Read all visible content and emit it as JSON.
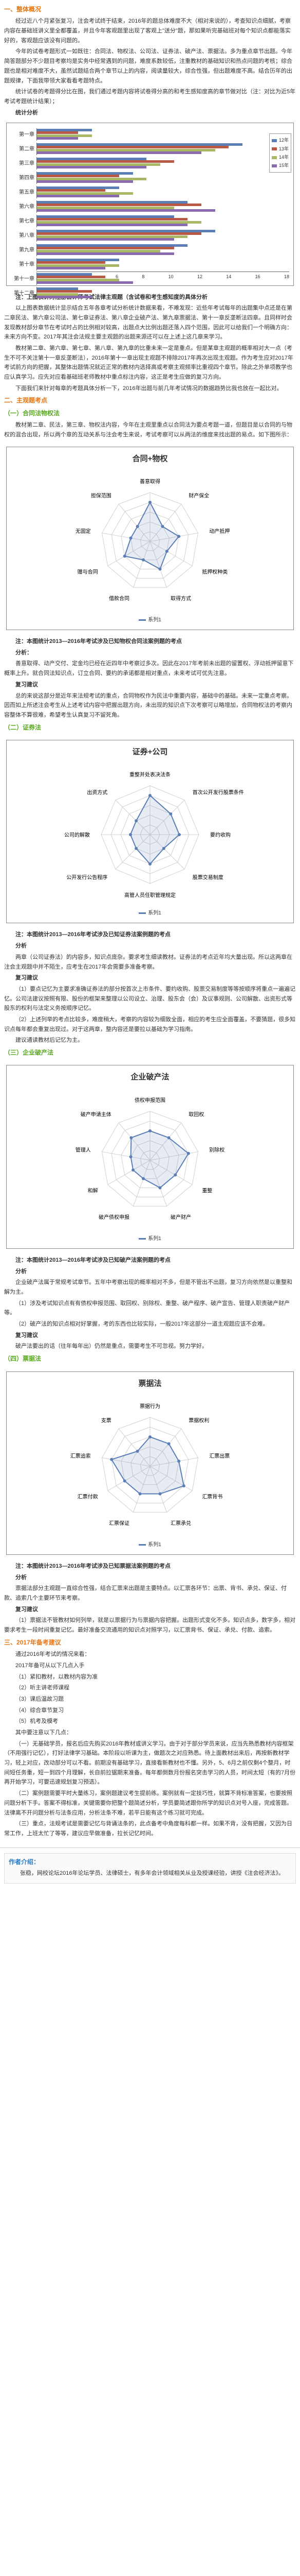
{
  "sections": {
    "s1_title": "一、整体概况",
    "s1_p1": "经过近八个月紧张复习，注会考试终于结束，2016年的题总体难度不大（相对来说的），考查知识点细腻，考察内容在基础班讲义里全都覆盖，并且今年客观题里出现了客观上\"送分\"题，那如果听完基础班对每个知识点都能落实好的，客观题应该没有问题的。",
    "s1_p2": "今年的试卷考题形式一如既往：合同法、物权法、公司法、证券法、破产法、票据法。多为重点章节出题。今年简答题部分不少题目考察均是实务中经常遇到的问题，难度系数较低，注重教材的基础知识和热点问题的考核；综合题也是相对难度不大，虽然试题结合两个章节以上的内容，阅读量较大，综合性强，但出题难度不高。结合历年的出题规律，下面我带领大家看看考题特点。",
    "s1_p3": "统计试卷的考题得分比在图，我们通过考题内容将试卷得分高的和考生感知度高的章节做对比（注：对比为近5年考试考题统计结果）；",
    "stat_title": "统计分析",
    "s1_note1": "注：上图仅针对注册会计师考试法律主观题（含试卷和考生感知度的具体分析",
    "s1_p4": "以上图表数据统计显示结合五年各章考试分析统计数据来看，不难发现：近些年考试每年的出题集中点还是在第二章民法、第六章公司法、第七章证券法、第八章企业破产法、第九章票据法、第十一章反垄断法四章。且同样时会发现教材部分章节在考试时占的比例相对较高，出题点大比例出题还落入四个范围，因此可以给我们一个明确方向：未来方向不变。2017年其注会法规主要主观题的出题来源还可以在上述上这几章来学习。",
    "s1_p5": "教材第二章、第六章、第七章、第八章、第九章的比重未来一定是重点。但是某章主观题的概率相对大一点（考生不可不关注第十一章反垄断法），2016年第十一章出现主观题不排除2017年再次出现主观题。作为考生应对2017年考试前方向的把握，其整体出题情况就近正常的教材内选择高或考察主观频率比重视四个章节。除此之外单项教学也应认真学习。应先对应看基础班老师教材中重点标注内容，这正是考生应做的复习方向。",
    "s1_p6": "下面我们来针对每章的考题具体分析一下，2016年出题与前几年考试情况的数据趋势比我也放在一起比对。",
    "s2_title": "二、主观题考点",
    "s2_sub1": "（一）合同法物权法",
    "s2_p1": "教材第二章、民法，第三章、物权法内容，今年在主观里重点以合同法为要点考题一道，但题目是以合同的与物权的混合出现，所以两个章的互动关系与注会考生来说，考试考察可以从两法的维度来找出题的易点。如下图所示：",
    "radar1_title": "合同+物权",
    "radar1_labels": [
      "善意取得",
      "财产保全",
      "动产抵押",
      "抵押权种类",
      "取得方式",
      "借款合同",
      "赠与合同",
      "无固定",
      "担保范围"
    ],
    "radar1_legend": "系列1",
    "s2_note2": "注：本图统计2013—2016年考试涉及已知物权合同法案例题的考点",
    "s2_a1_title": "分析：",
    "s2_a1_p": "善意取得、动产交付、定金均已经在近四年中考察过多次。因此在2017年考前未出题的留置权、浮动抵押留意下概率上升。就合同法知识点，订立合同、要约的承诺都是相对重点，未来考试可优先注意。",
    "s2_r1_title": "复习建议",
    "s2_r1_p": "总的来说这部分是近年来法规考试的重点，合同物权作为民法中重要内容，基础中的基础。未来一定重点考察。因而如上所述注会考生从上述考试内容中把握出题方向，未出现的知识点下次考察可以略增加，合同物权法的考察内容整体不算很难，希望考生认真复习不留死角。",
    "s2_sub2": "（二）证券法",
    "radar2_title": "证券+公司",
    "radar2_labels": [
      "重整并处表决法条",
      "首次公开发行股票条件",
      "要约收购",
      "股票交易制度",
      "高管人员任职管理规定",
      "公开发行公告程序",
      "公司的解散",
      "出资方式"
    ],
    "radar2_legend": "系列1",
    "s2_note3": "注：本图统计2013—2016年考试涉及已知证券法案例题的考点",
    "s2_a2_title": "分析",
    "s2_a2_p": "两章（公司证券法）的内容多，知识点庞杂。要求考生细读教材。证券法的考点近年均大量出现。所以这两章在注会主观题中并不陌生，应考生在2017年会需要多准备考察。",
    "s2_r2_title": "复习建议",
    "s2_r2_p1": "（1）要点记忆为主要求准确证券法的部分按首次上市条件、要约收购、股票交易制度等等按顺序将重点一遍遍记忆。公司法建议按照有限、股份的框架来整理以公司设立、治理、股东会（会）及议事规则、公司解散、出资形式等股东的权利与法定义务按顺序记忆。",
    "s2_r2_p2": "（2）上述列举的考点比较多，难度稍大，考察的内容较为细致全面，相应的考生应全面覆盖，不要猜题，很多知识点每年都会重复出现过。对于这两章，整内容还是要拉以基础为学习指南。",
    "s2_r2_p3": "建议通读教材后记忆为主。",
    "s2_sub3": "（三）企业破产法",
    "radar3_title": "企业破产法",
    "radar3_labels": [
      "债权申报范围",
      "取回权",
      "别除权",
      "重整",
      "破产财产",
      "破产债权申报",
      "和解",
      "管理人",
      "破产申请主体"
    ],
    "radar3_legend": "系列1",
    "s2_note4": "注：本图统计2013—2016年考试涉及已知破产法案例题的考点",
    "s2_a3_title": "分析",
    "s2_a3_p1": "企业破产法属于常规考试章节。五年中考察出现的概率相对不多，但是不管出不出题，复习方向依然是以重整和解为主。",
    "s2_a3_p2": "（1）涉及考试知识点有有债权申报范围、取回权、别除权、重整、破产程序、破产宣告、管理人职责破产财产等。",
    "s2_a3_p3": "（2）破产法的知识点相对好掌握，考的东西也比较实际，一般2017年这部分一道主观题应该不会难。",
    "s2_r3_title": "复习建议",
    "s2_r3_p": "破产法要出的话（往年每年出）仍然是重点，需要考生不可忽视。努力学好。",
    "s2_sub4": "（四）票据法",
    "radar4_title": "票据法",
    "radar4_labels": [
      "票据行为",
      "票据权利",
      "汇票出票",
      "汇票背书",
      "汇票承兑",
      "汇票保证",
      "汇票付款",
      "汇票追索",
      "支票"
    ],
    "radar4_legend": "系列1",
    "s2_note5": "注：本图统计2013—2016年考试涉及已知票据法案例题的考点",
    "s2_a4_title": "分析",
    "s2_a4_p": "票据法部分主观题一直综合性强，结合汇票来出题是主要特点。以汇票各环节：出票、背书、承兑、保证、付款、追索几个主要环节来考察。",
    "s2_r4_title": "复习建议",
    "s2_r4_p": "（1）票据法不管教材如何列举，就是以票据行为与票据内容把握。出题形式变化不多。知识点多，数字多，相对要求考生一段时间重复记忆。最好准备交流通用的知识点对照学习，以汇票背书、保证、承兑、付款、追索。",
    "s3_title": "三、2017年备考建议",
    "s3_p1": "通过2016年考试的情况来看：",
    "s3_p2": "2017年备可从以下几点入手",
    "s3_li1": "（1）紧扣教材，以教材内容为准",
    "s3_li2": "（2）听主讲老师课程",
    "s3_li3": "（3）课后温故习题",
    "s3_li4": "（4）综合章节复习",
    "s3_li5": "（5）机考及模考",
    "s3_p3": "其中要注意以下几点：",
    "s3_p4": "（一）无基础学员，报名后应先购买2016年教材或讲义学习。由于对于部分学员来说，应当先熟悉教材内容框架（不用强行记忆），打好法律学习基础。本阶段以听课为主，做题次之对应熟悉。待上面教材出来后，再按新教材学习，轻上对应，改动部分可以不看。前期没有基础学习，直接看新教材也不懂。另外，5、6月之前仅剩4个整月，时间短任务重，短一到四个月理解，长自前拉锯期来准备。每年都倒数月份报名突击学习的人员，时间太短（有的7月份再开始学习，可要迅速规划复习预选）。",
    "s3_p5": "（二）案例题需要平时大量练习，案例题建议考生提前练。案例就有一定技巧性，就算不背标准答案，也要按照问题分析下手。答案不得标准，关键需要你把整个题简述分析，学员要简述跟你所学的知识点对号入座，完成答题。法律离不开问题分析与法条应用，分析法条不难，若平日能有这个练习就可完成。",
    "s3_p6": "（三）重点，法规考试是需要记忆与背诵法条的，此点备考中角度每科都一样。如果不背，没有把握，又因为日常工作，上班太忙了等等，建议应早做准备，拉长记忆时间。",
    "s4_title": "作者介绍：",
    "s4_p": "张稳，网校论坛2016年论坛学员、法律硕士，有多年会计领域相关从业及授课经验，讲授《注会经济法》。"
  },
  "bar_chart": {
    "categories": [
      "第一章",
      "第二章",
      "第三章",
      "第四章",
      "第五章",
      "第六章",
      "第七章",
      "第八章",
      "第九章",
      "第十章",
      "第十一章",
      "第十二章"
    ],
    "series": [
      {
        "name": "12年",
        "color": "#5b7fb5",
        "values": [
          4,
          15,
          8,
          7,
          6,
          11,
          10,
          13,
          11,
          6,
          4,
          3
        ]
      },
      {
        "name": "13年",
        "color": "#b85a45",
        "values": [
          3,
          14,
          10,
          6,
          5,
          12,
          11,
          12,
          10,
          5,
          5,
          4
        ]
      },
      {
        "name": "14年",
        "color": "#a8b763",
        "values": [
          4,
          13,
          9,
          8,
          7,
          10,
          12,
          11,
          9,
          6,
          6,
          3
        ]
      },
      {
        "name": "15年",
        "color": "#8b6bb0",
        "values": [
          3,
          12,
          8,
          7,
          6,
          13,
          11,
          10,
          10,
          5,
          7,
          4
        ]
      }
    ],
    "xmax": 18,
    "xticks": [
      0,
      2,
      4,
      6,
      8,
      10,
      12,
      14,
      16,
      18
    ]
  },
  "radar_common": {
    "grid_color": "#d0d0d0",
    "line_color": "#5b7fb5",
    "fill_opacity": 0.15,
    "levels": 5
  },
  "radar1": {
    "values": [
      4,
      2,
      3,
      2,
      3,
      2,
      3,
      2,
      2
    ]
  },
  "radar2": {
    "values": [
      4,
      3,
      3,
      2,
      3,
      2,
      2,
      2
    ]
  },
  "radar3": {
    "values": [
      3,
      3,
      4,
      3,
      3,
      2,
      2,
      2,
      3
    ]
  },
  "radar4": {
    "values": [
      3,
      3,
      3,
      4,
      3,
      3,
      3,
      4,
      2
    ]
  }
}
